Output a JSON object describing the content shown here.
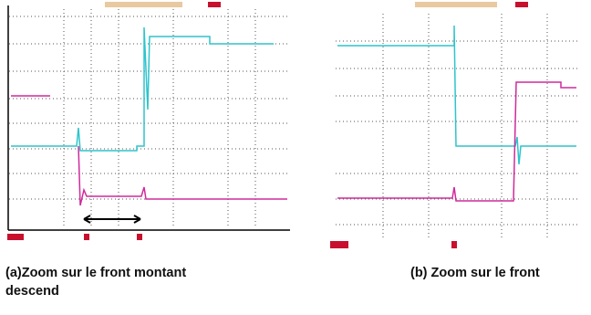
{
  "captions": [
    "(a)Zoom sur le front montant",
    "(b) Zoom sur le front",
    "descend"
  ]
}
